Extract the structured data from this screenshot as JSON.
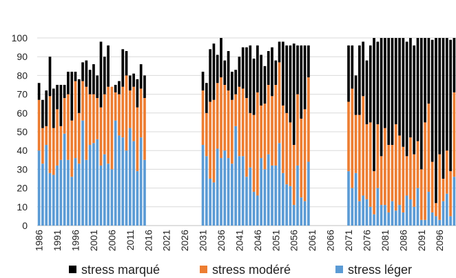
{
  "chart_data": {
    "type": "stacked-bar",
    "x": [
      1986,
      1987,
      1988,
      1989,
      1990,
      1991,
      1992,
      1993,
      1994,
      1995,
      1996,
      1997,
      1998,
      1999,
      2000,
      2001,
      2002,
      2003,
      2004,
      2005,
      2006,
      2007,
      2008,
      2009,
      2010,
      2011,
      2012,
      2013,
      2014,
      2015,
      2031,
      2032,
      2033,
      2034,
      2035,
      2036,
      2037,
      2038,
      2039,
      2040,
      2041,
      2042,
      2043,
      2044,
      2045,
      2046,
      2047,
      2048,
      2049,
      2050,
      2051,
      2052,
      2053,
      2054,
      2055,
      2056,
      2057,
      2058,
      2059,
      2060,
      2071,
      2072,
      2073,
      2074,
      2075,
      2076,
      2077,
      2078,
      2079,
      2080,
      2081,
      2082,
      2083,
      2084,
      2085,
      2086,
      2087,
      2088,
      2089,
      2090,
      2091,
      2092,
      2093,
      2094,
      2095,
      2096,
      2097,
      2098,
      2099,
      2100
    ],
    "series": [
      {
        "name": "stress léger",
        "color": "#5b9bd5",
        "values": [
          40,
          33,
          43,
          28,
          27,
          32,
          35,
          49,
          35,
          26,
          36,
          33,
          56,
          35,
          43,
          44,
          46,
          32,
          38,
          33,
          30,
          56,
          48,
          47,
          40,
          52,
          45,
          29,
          47,
          35,
          43,
          37,
          25,
          23,
          41,
          36,
          40,
          36,
          33,
          53,
          37,
          37,
          26,
          31,
          18,
          16,
          36,
          30,
          38,
          32,
          32,
          44,
          28,
          22,
          21,
          11,
          32,
          15,
          13,
          34,
          29,
          20,
          28,
          13,
          16,
          14,
          10,
          6,
          20,
          11,
          11,
          7,
          13,
          8,
          11,
          7,
          16,
          14,
          10,
          20,
          3,
          3,
          18,
          7,
          5,
          3,
          13,
          17,
          5,
          26
        ]
      },
      {
        "name": "stress modéré",
        "color": "#ed7d31",
        "values": [
          27,
          19,
          10,
          41,
          25,
          30,
          18,
          19,
          35,
          30,
          41,
          27,
          21,
          39,
          27,
          26,
          22,
          31,
          32,
          41,
          44,
          15,
          22,
          27,
          40,
          20,
          29,
          34,
          26,
          33,
          29,
          23,
          41,
          44,
          35,
          43,
          35,
          36,
          34,
          17,
          37,
          36,
          42,
          29,
          41,
          55,
          28,
          35,
          37,
          37,
          43,
          43,
          36,
          38,
          34,
          32,
          38,
          42,
          49,
          45,
          37,
          53,
          31,
          46,
          53,
          40,
          45,
          23,
          34,
          26,
          41,
          36,
          30,
          46,
          37,
          35,
          21,
          33,
          28,
          25,
          27,
          52,
          47,
          27,
          7,
          35,
          12,
          23,
          24,
          45
        ]
      },
      {
        "name": "stress marqué",
        "color": "#000000",
        "values": [
          9,
          15,
          19,
          21,
          21,
          13,
          22,
          7,
          12,
          26,
          5,
          18,
          10,
          14,
          13,
          16,
          12,
          35,
          20,
          22,
          0,
          4,
          7,
          20,
          13,
          8,
          7,
          15,
          13,
          12,
          10,
          16,
          28,
          30,
          15,
          21,
          13,
          21,
          15,
          13,
          16,
          22,
          27,
          36,
          30,
          25,
          27,
          20,
          18,
          26,
          13,
          11,
          34,
          36,
          41,
          54,
          26,
          39,
          34,
          17,
          30,
          23,
          21,
          37,
          29,
          34,
          41,
          71,
          44,
          63,
          48,
          57,
          57,
          46,
          52,
          58,
          61,
          53,
          58,
          55,
          70,
          45,
          35,
          65,
          88,
          62,
          75,
          60,
          70,
          29
        ]
      }
    ],
    "xlim": [
      1985.5,
      2100.5
    ],
    "xticks": [
      1986,
      1991,
      1996,
      2001,
      2006,
      2011,
      2016,
      2021,
      2026,
      2031,
      2036,
      2041,
      2046,
      2051,
      2056,
      2061,
      2066,
      2071,
      2076,
      2081,
      2086,
      2091,
      2096
    ],
    "ylim": [
      0,
      100
    ],
    "yticks": [
      0,
      10,
      20,
      30,
      40,
      50,
      60,
      70,
      80,
      90,
      100
    ],
    "grid": true
  }
}
